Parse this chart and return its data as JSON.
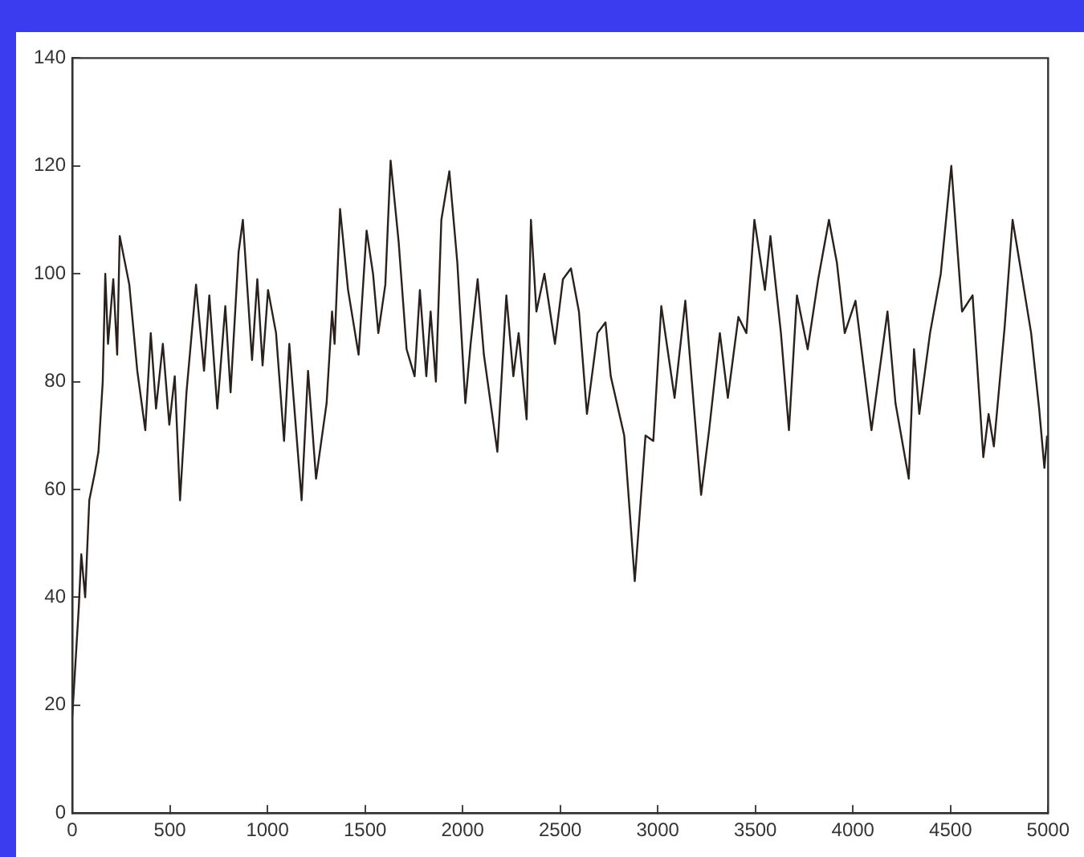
{
  "chart_data": {
    "type": "line",
    "x": [
      0,
      33,
      46,
      66,
      87,
      115,
      134,
      156,
      169,
      183,
      210,
      230,
      243,
      292,
      333,
      374,
      402,
      429,
      464,
      497,
      525,
      552,
      585,
      634,
      675,
      702,
      743,
      784,
      811,
      852,
      874,
      921,
      948,
      975,
      1003,
      1044,
      1085,
      1112,
      1175,
      1208,
      1249,
      1303,
      1331,
      1344,
      1372,
      1413,
      1467,
      1508,
      1541,
      1568,
      1604,
      1631,
      1672,
      1713,
      1754,
      1781,
      1814,
      1836,
      1863,
      1891,
      1932,
      1973,
      2014,
      2041,
      2077,
      2109,
      2178,
      2224,
      2260,
      2287,
      2328,
      2350,
      2378,
      2419,
      2473,
      2514,
      2555,
      2596,
      2637,
      2691,
      2732,
      2759,
      2828,
      2882,
      2937,
      2977,
      3018,
      3086,
      3141,
      3222,
      3263,
      3318,
      3359,
      3413,
      3454,
      3495,
      3549,
      3577,
      3631,
      3672,
      3713,
      3768,
      3822,
      3877,
      3918,
      3958,
      4013,
      4095,
      4177,
      4218,
      4286,
      4313,
      4340,
      4395,
      4450,
      4504,
      4559,
      4613,
      4668,
      4695,
      4722,
      4777,
      4818,
      4859,
      4913,
      4954,
      4981,
      4995
    ],
    "series": [
      {
        "color": "#2b211c",
        "values": [
          18,
          38,
          48,
          40,
          58,
          63,
          67,
          80,
          100,
          87,
          99,
          85,
          107,
          98,
          82,
          71,
          89,
          75,
          87,
          72,
          81,
          58,
          78,
          98,
          82,
          96,
          75,
          94,
          78,
          104,
          110,
          84,
          99,
          83,
          97,
          89,
          69,
          87,
          58,
          82,
          62,
          76,
          93,
          87,
          112,
          97,
          85,
          108,
          100,
          89,
          98,
          121,
          106,
          86,
          81,
          97,
          81,
          93,
          80,
          110,
          119,
          102,
          76,
          87,
          99,
          85,
          67,
          96,
          81,
          89,
          73,
          110,
          93,
          100,
          87,
          99,
          101,
          93,
          74,
          89,
          91,
          81,
          70,
          43,
          70,
          69,
          94,
          77,
          95,
          59,
          71,
          89,
          77,
          92,
          89,
          110,
          97,
          107,
          89,
          71,
          96,
          86,
          99,
          110,
          102,
          89,
          95,
          71,
          93,
          76,
          62,
          86,
          74,
          89,
          100,
          120,
          93,
          96,
          66,
          74,
          68,
          90,
          110,
          101,
          89,
          75,
          64,
          70
        ]
      }
    ],
    "xlim": [
      0,
      5000
    ],
    "xticks": [
      0,
      500,
      1000,
      1500,
      2000,
      2500,
      3000,
      3500,
      4000,
      4500,
      5000
    ],
    "ylim": [
      0,
      140
    ],
    "yticks": [
      0,
      20,
      40,
      60,
      80,
      100,
      120,
      140
    ],
    "grid": false,
    "legend": false,
    "marker": "none",
    "line_style": "solid"
  }
}
